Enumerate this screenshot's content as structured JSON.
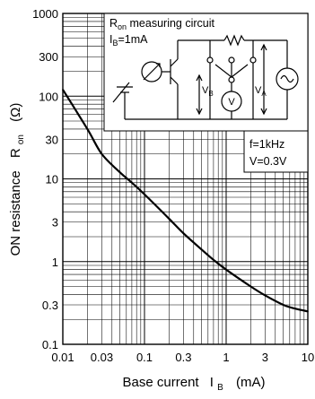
{
  "chart_data": {
    "type": "line",
    "xscale": "log",
    "yscale": "log",
    "xlim": [
      0.01,
      10
    ],
    "ylim": [
      0.1,
      1000
    ],
    "grid": true,
    "xlabel": "Base current",
    "xlabel_symbol": "I",
    "xlabel_sub": "B",
    "xlabel_unit": "(mA)",
    "ylabel": "ON resistance",
    "ylabel_symbol": "R",
    "ylabel_sub": "on",
    "ylabel_unit": "(Ω)",
    "x_ticks": [
      {
        "v": 0.01,
        "label": "0.01"
      },
      {
        "v": 0.03,
        "label": "0.03"
      },
      {
        "v": 0.1,
        "label": "0.1"
      },
      {
        "v": 0.3,
        "label": "0.3"
      },
      {
        "v": 1,
        "label": "1"
      },
      {
        "v": 3,
        "label": "3"
      },
      {
        "v": 10,
        "label": "10"
      }
    ],
    "y_ticks": [
      {
        "v": 0.1,
        "label": "0.1"
      },
      {
        "v": 0.3,
        "label": "0.3"
      },
      {
        "v": 1,
        "label": "1"
      },
      {
        "v": 3,
        "label": "3"
      },
      {
        "v": 10,
        "label": "10"
      },
      {
        "v": 30,
        "label": "30"
      },
      {
        "v": 100,
        "label": "100"
      },
      {
        "v": 300,
        "label": "300"
      },
      {
        "v": 1000,
        "label": "1000"
      }
    ],
    "series": [
      {
        "x": [
          0.01,
          0.02,
          0.03,
          0.05,
          0.07,
          0.1,
          0.2,
          0.3,
          0.5,
          0.7,
          1,
          2,
          3,
          5,
          7,
          10
        ],
        "y": [
          120,
          40,
          20,
          12,
          9,
          6.5,
          3.3,
          2.2,
          1.4,
          1.05,
          0.8,
          0.5,
          0.39,
          0.3,
          0.27,
          0.25
        ]
      }
    ],
    "annotations": {
      "conditions": [
        "f=1kHz",
        "V=0.3V"
      ],
      "inset": {
        "title": "R",
        "title_sub": "on",
        "title_rest": " measuring circuit",
        "condition": "I",
        "condition_sub": "B",
        "condition_rest": "=1mA",
        "vb": "V",
        "vb_sub": "B",
        "va": "V",
        "va_sub": "A",
        "meter": "V"
      }
    }
  }
}
